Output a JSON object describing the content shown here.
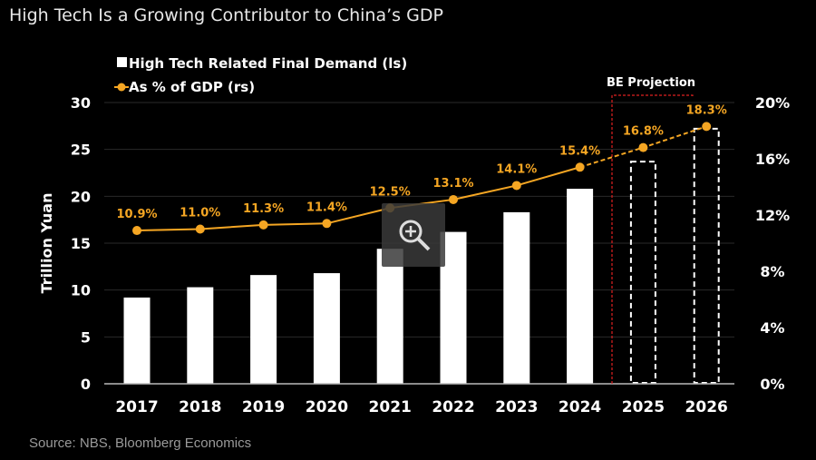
{
  "title": "High Tech Is a Growing Contributor to China’s GDP",
  "source": "Source: NBS, Bloomberg Economics",
  "chart_data": {
    "type": "bar+line",
    "categories": [
      "2017",
      "2018",
      "2019",
      "2020",
      "2021",
      "2022",
      "2023",
      "2024",
      "2025",
      "2026"
    ],
    "series": [
      {
        "name": "High Tech Related Final Demand (ls)",
        "type": "bar",
        "axis": "left",
        "color": "#ffffff",
        "values": [
          9.2,
          10.3,
          11.6,
          11.8,
          14.4,
          16.2,
          18.3,
          20.8,
          23.7,
          27.2
        ],
        "projected_from": "2025"
      },
      {
        "name": "As % of GDP (rs)",
        "type": "line",
        "axis": "right",
        "color": "#f5a623",
        "values": [
          10.9,
          11.0,
          11.3,
          11.4,
          12.5,
          13.1,
          14.1,
          15.4,
          16.8,
          18.3
        ],
        "labels": [
          "10.9%",
          "11.0%",
          "11.3%",
          "11.4%",
          "12.5%",
          "13.1%",
          "14.1%",
          "15.4%",
          "16.8%",
          "18.3%"
        ],
        "projected_from": "2025"
      }
    ],
    "ylabel": "Trillion Yuan",
    "ylim": [
      0,
      30
    ],
    "yticks": [
      "0",
      "5",
      "10",
      "15",
      "20",
      "25",
      "30"
    ],
    "y2lim": [
      0,
      20
    ],
    "y2ticks": [
      "0%",
      "4%",
      "8%",
      "12%",
      "16%",
      "20%"
    ],
    "annotation": "BE Projection",
    "annotation_color": "#e02020",
    "grid": true,
    "legend": "top-left"
  }
}
